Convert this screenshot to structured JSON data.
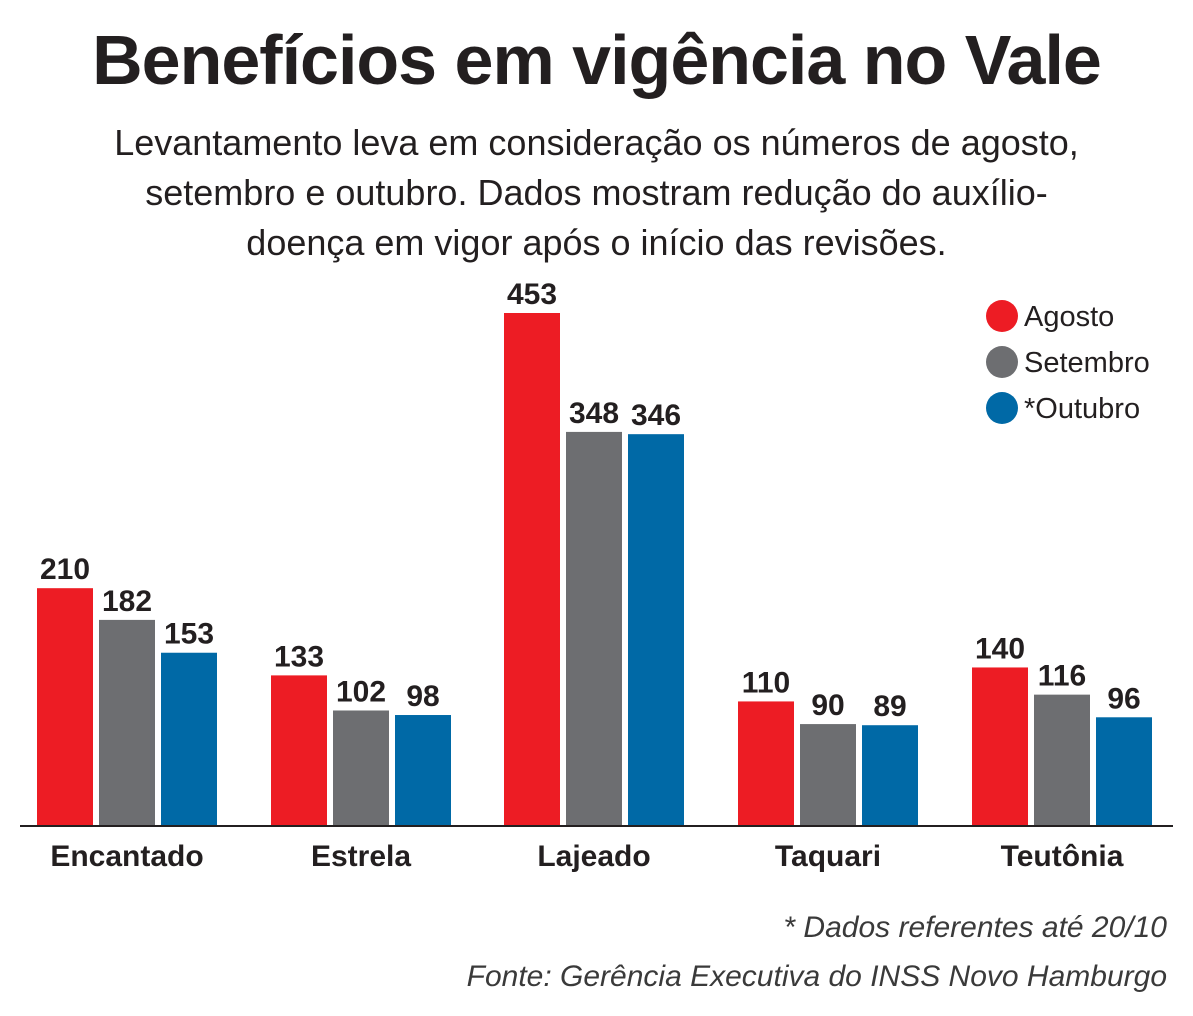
{
  "chart_data": {
    "type": "bar",
    "title": "Benefícios em vigência no Vale",
    "subtitle": "Levantamento leva em consideração os números de agosto, setembro e outubro. Dados mostram redução do auxílio-doença em vigor após o início das revisões.",
    "categories": [
      "Encantado",
      "Estrela",
      "Lajeado",
      "Taquari",
      "Teutônia"
    ],
    "series": [
      {
        "name": "Agosto",
        "color": "#ed1c24",
        "values": [
          210,
          133,
          453,
          110,
          140
        ]
      },
      {
        "name": "Setembro",
        "color": "#6d6e71",
        "values": [
          182,
          102,
          348,
          90,
          116
        ]
      },
      {
        "name": "*Outubro",
        "color": "#0069a6",
        "values": [
          153,
          98,
          346,
          89,
          96
        ]
      }
    ],
    "ylim": [
      0,
      453
    ],
    "xlabel": "",
    "ylabel": "",
    "grid": false,
    "legend": "top-right",
    "footnote": "* Dados referentes até 20/10",
    "source": "Fonte: Gerência Executiva do INSS Novo Hamburgo"
  }
}
